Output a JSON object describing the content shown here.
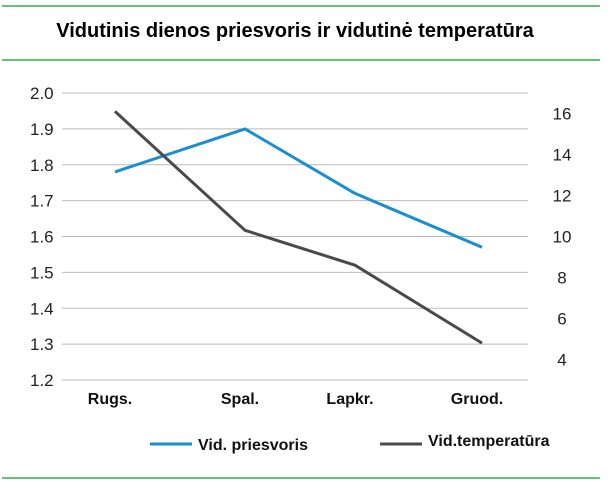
{
  "chart_data": {
    "type": "line",
    "title": "Vidutinis dienos priesvoris ir vidutinė temperatūra",
    "categories": [
      "Rugs.",
      "Spal.",
      "Lapkr.",
      "Gruod."
    ],
    "series": [
      {
        "name": "Vid. priesvoris",
        "axis": "left",
        "color": "#1a8fd0",
        "values": [
          1.78,
          1.9,
          1.72,
          1.57
        ]
      },
      {
        "name": "Vid.temperatūra",
        "axis": "right",
        "color": "#4a4a4a",
        "values": [
          16.1,
          10.3,
          8.6,
          4.8
        ]
      }
    ],
    "y_left": {
      "ylim": [
        1.2,
        2.0
      ],
      "ticks": [
        "2.0",
        "1.9",
        "1.8",
        "1.7",
        "1.6",
        "1.5",
        "1.4",
        "1.3",
        "1.2"
      ]
    },
    "y_right": {
      "ylim": [
        3,
        17
      ],
      "ticks": [
        "16",
        "14",
        "12",
        "10",
        "8",
        "6",
        "4"
      ]
    },
    "grid": true,
    "legend": "bottom",
    "colors": {
      "accent_line": "#2bb24c",
      "grid": "#bbbbbb"
    }
  }
}
